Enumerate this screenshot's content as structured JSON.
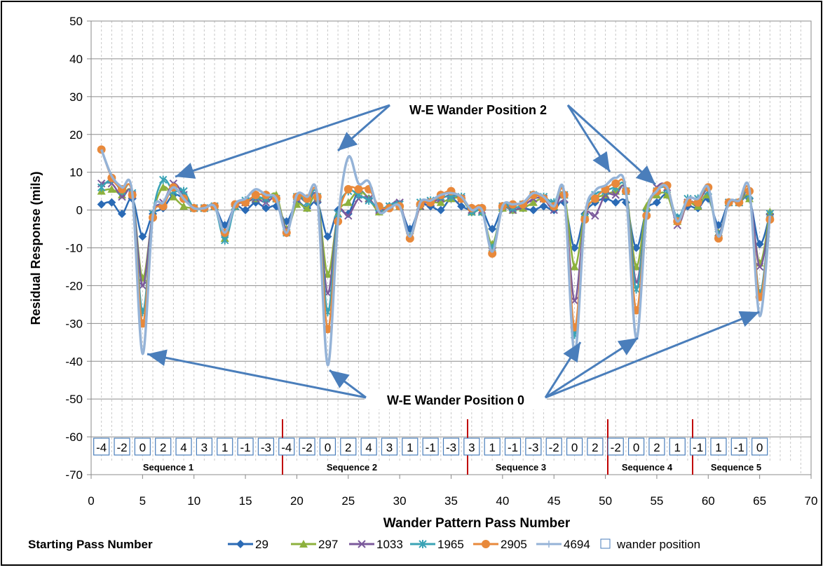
{
  "chart_data": {
    "type": "line",
    "xlabel": "Wander Pattern Pass Number",
    "ylabel": "Residual Response (mils)",
    "xlim": [
      0,
      70
    ],
    "xticks": [
      0,
      5,
      10,
      15,
      20,
      25,
      30,
      35,
      40,
      45,
      50,
      55,
      60,
      65,
      70
    ],
    "ylim": [
      -70,
      50
    ],
    "yticks": [
      -70,
      -60,
      -50,
      -40,
      -30,
      -20,
      -10,
      0,
      10,
      20,
      30,
      40,
      50
    ],
    "grid": true,
    "x_minor_grid": 1,
    "legend_title": "Starting Pass Number",
    "legend": "bottom",
    "x": [
      1,
      2,
      3,
      4,
      5,
      6,
      7,
      8,
      9,
      10,
      11,
      12,
      13,
      14,
      15,
      16,
      17,
      18,
      19,
      20,
      21,
      22,
      23,
      24,
      25,
      26,
      27,
      28,
      29,
      30,
      31,
      32,
      33,
      34,
      35,
      36,
      37,
      38,
      39,
      40,
      41,
      42,
      43,
      44,
      45,
      46,
      47,
      48,
      49,
      50,
      51,
      52,
      53,
      54,
      55,
      56,
      57,
      58,
      59,
      60,
      61,
      62,
      63,
      64,
      65,
      66
    ],
    "series": [
      {
        "name": "29",
        "color": "#2a6ab5",
        "marker": "diamond",
        "values": [
          1.5,
          2,
          -1,
          3,
          -7,
          -1,
          0.5,
          4,
          3,
          0.5,
          0.5,
          1,
          -4,
          1,
          0,
          2,
          0.5,
          1,
          -3,
          2,
          0.5,
          2,
          -7,
          0,
          -1,
          5,
          3,
          0,
          1,
          1,
          -5,
          1,
          1,
          0,
          3,
          1,
          0,
          0,
          -5,
          0.5,
          0,
          0.5,
          0,
          1,
          0,
          2,
          -10,
          -1,
          2,
          3,
          2,
          2,
          -10,
          0,
          2,
          4,
          -2,
          1,
          0.5,
          3,
          -4,
          2,
          2,
          3,
          -9,
          -1
        ]
      },
      {
        "name": "297",
        "color": "#8db13d",
        "marker": "triangle",
        "values": [
          5,
          5.5,
          4,
          4,
          -18,
          -1,
          6,
          3.5,
          1,
          0.5,
          0.5,
          1,
          -7.5,
          1,
          2,
          3,
          3,
          4,
          -5,
          1.5,
          0.5,
          3,
          -17,
          -1,
          2,
          5,
          3,
          -0.5,
          1,
          1,
          -7,
          1,
          2,
          2,
          3,
          3,
          -0.5,
          -0.5,
          -9,
          0.5,
          0,
          0.5,
          2,
          3,
          1,
          4,
          -15,
          -1,
          3,
          4,
          5,
          5,
          -15,
          1,
          4,
          4,
          -3,
          2,
          1,
          4,
          -6,
          2,
          2,
          3,
          -14,
          -0.5
        ]
      },
      {
        "name": "1033",
        "color": "#7b5a9b",
        "marker": "x",
        "values": [
          7,
          7,
          3.5,
          4,
          -20,
          -1,
          2,
          7,
          4,
          0.5,
          0.5,
          1,
          -6,
          1,
          2,
          3,
          2,
          3,
          -5,
          3,
          2,
          3,
          -22,
          -1,
          -1.5,
          3,
          3,
          0,
          1,
          2,
          -7,
          1,
          2,
          3,
          4,
          3,
          0,
          0,
          -11,
          1,
          0,
          1,
          3,
          3,
          0,
          3,
          -24,
          -2,
          -1.5,
          4,
          4,
          5,
          -19,
          -1,
          6,
          6,
          -4,
          2,
          2,
          5,
          -6,
          2,
          2,
          4,
          -15,
          -2
        ]
      },
      {
        "name": "1965",
        "color": "#3aa3b5",
        "marker": "star",
        "values": [
          6,
          8,
          5,
          4.5,
          -27,
          -1,
          8,
          5,
          5,
          0.5,
          0.5,
          1,
          -8,
          1,
          2.5,
          3.5,
          3,
          3,
          -6,
          3.5,
          2,
          3.5,
          -27,
          -1,
          5,
          4,
          2.5,
          0.5,
          1,
          1.5,
          -7,
          2,
          2.5,
          3.5,
          3.5,
          3.5,
          -0.5,
          -0.5,
          -10,
          1,
          0.5,
          1.5,
          4,
          3.5,
          2,
          4,
          -33,
          -2,
          4,
          5,
          6,
          5,
          -21,
          -1,
          5,
          5.5,
          -2,
          3,
          3,
          5,
          -6.5,
          2,
          2,
          4,
          -22,
          -1
        ]
      },
      {
        "name": "2905",
        "color": "#e8893b",
        "marker": "circle",
        "values": [
          16,
          8.5,
          5.5,
          4,
          -30,
          -2,
          1,
          6,
          3,
          0.5,
          0.5,
          1,
          -6,
          1.5,
          2,
          4,
          4,
          3,
          -6,
          3.5,
          3,
          3.5,
          -31.5,
          -3,
          5.5,
          5.5,
          5.5,
          1,
          0.5,
          1,
          -7.5,
          1.5,
          2,
          4,
          5,
          3,
          0.5,
          0.5,
          -11.5,
          1,
          1.5,
          1.5,
          4,
          3,
          1,
          4,
          -31,
          -2.5,
          3,
          5.5,
          7,
          5,
          -26.5,
          -1.5,
          5,
          6.5,
          -3,
          2,
          2,
          6,
          -7.5,
          2,
          2,
          5,
          -23,
          -2.5
        ]
      },
      {
        "name": "4694",
        "color": "#95b3d7",
        "marker": "plus",
        "values": [
          16,
          9,
          6,
          4.5,
          -38,
          -1.5,
          2,
          6,
          3,
          0.5,
          0.5,
          1,
          -6,
          1.5,
          3,
          5.5,
          4,
          3,
          -6,
          4,
          3.5,
          3.5,
          -41,
          -3,
          14,
          7,
          7.5,
          -0.5,
          0.5,
          1,
          -7,
          2,
          2.5,
          4,
          4.5,
          3.5,
          0,
          0,
          -11,
          1,
          1.5,
          2,
          4.5,
          3.5,
          1,
          4.5,
          -38,
          -2,
          5,
          6.5,
          8.5,
          5,
          -34,
          -1.5,
          5,
          6,
          -3,
          3,
          3,
          6,
          -7,
          2,
          2.5,
          5.5,
          -28,
          -1.5
        ]
      }
    ],
    "wander": {
      "name": "wander position",
      "x": [
        1,
        3,
        5,
        7,
        9,
        11,
        13,
        15,
        17,
        19,
        21,
        23,
        25,
        27,
        29,
        31,
        33,
        35,
        37,
        39,
        41,
        43,
        45,
        47,
        49,
        51,
        53,
        55,
        57,
        59,
        61,
        63,
        65
      ],
      "labels": [
        "-4",
        "-2",
        "0",
        "2",
        "4",
        "3",
        "1",
        "-1",
        "-3",
        "-4",
        "-2",
        "0",
        "2",
        "4",
        "3",
        "1",
        "-1",
        "-3",
        "3",
        "1",
        "-1",
        "-3",
        "-2",
        "0",
        "2",
        "-2",
        "0",
        "2",
        "1",
        "-1",
        "1",
        "-1",
        "0"
      ]
    },
    "sequences": [
      "Sequence 1",
      "Sequence 2",
      "Sequence 3",
      "Sequence 4",
      "Sequence 5"
    ],
    "annotations": [
      {
        "text": "W-E Wander Position 2"
      },
      {
        "text": "W-E Wander Position 0"
      }
    ]
  }
}
